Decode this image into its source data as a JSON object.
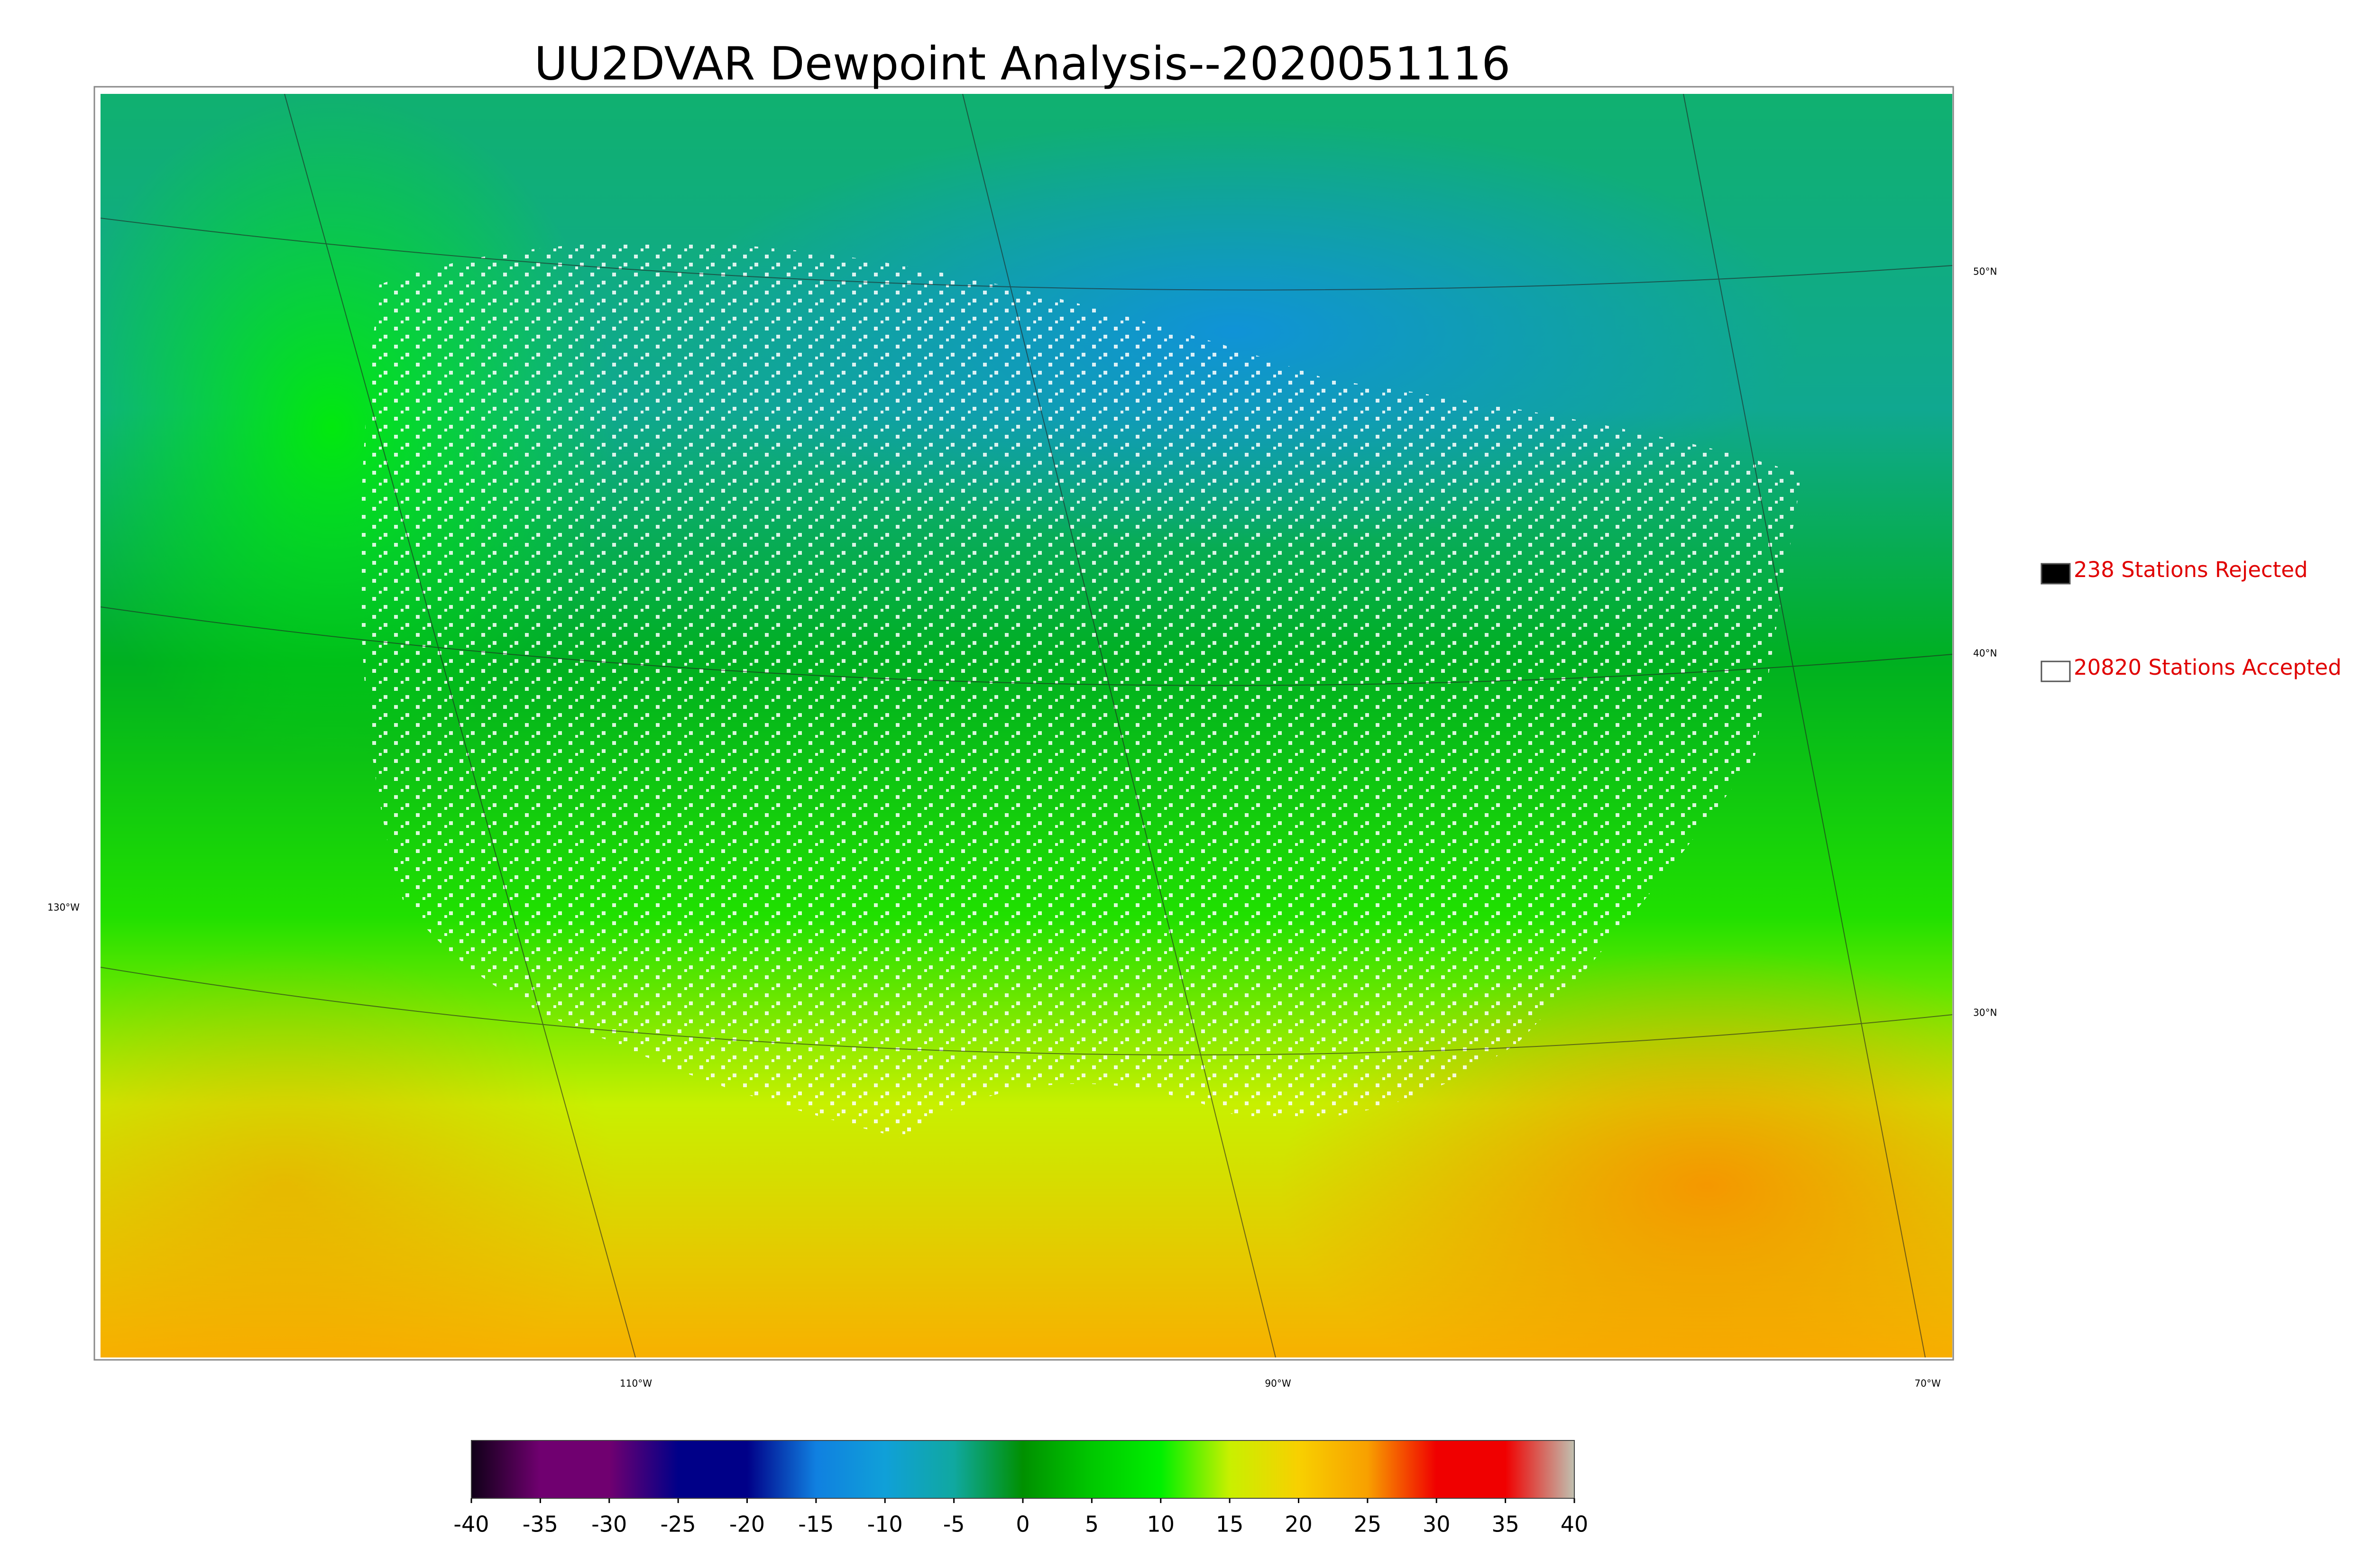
{
  "title": "UU2DVAR Dewpoint Analysis--2020051116",
  "legend": [
    {
      "label": "238 Stations Rejected",
      "color": "#000000"
    },
    {
      "label": "20820 Stations Accepted",
      "color": "#ffffff"
    }
  ],
  "latitude_labels": [
    "50°N",
    "40°N",
    "30°N"
  ],
  "longitude_labels": [
    "130°W",
    "110°W",
    "90°W",
    "70°W"
  ],
  "colorbar": {
    "range": [
      -40,
      40
    ],
    "ticks": [
      -40,
      -35,
      -30,
      -25,
      -20,
      -15,
      -10,
      -5,
      0,
      5,
      10,
      15,
      20,
      25,
      30,
      35,
      40
    ],
    "colors": [
      "#100018",
      "#700070",
      "#700070",
      "#000088",
      "#000088",
      "#1080e0",
      "#10a0d8",
      "#10a8a0",
      "#009000",
      "#00c800",
      "#00f000",
      "#c8f000",
      "#f8d000",
      "#f8a000",
      "#f00000",
      "#f00000",
      "#c0c0b0"
    ]
  }
}
